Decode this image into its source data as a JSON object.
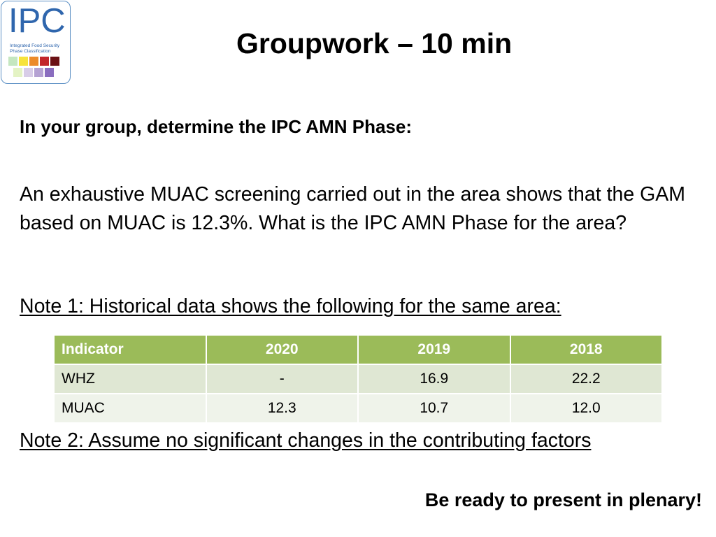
{
  "logo": {
    "wordmark": "IPC",
    "subtitle": "Integrated Food Security\nPhase Classification",
    "swatches_row1": [
      "#c5e7c0",
      "#f7e33b",
      "#ec8b2a",
      "#c2252a",
      "#6b1115"
    ],
    "swatches_row2": [
      "#e4f3c4",
      "#d8cde8",
      "#b5a2d3",
      "#8a6dbf"
    ]
  },
  "title": "Groupwork – 10 min",
  "instruction": "In your group, determine the IPC AMN Phase:",
  "scenario": "An exhaustive MUAC screening carried out in the area shows that the GAM based on MUAC is 12.3%. What is the IPC AMN Phase for the area?",
  "note1": "Note 1: Historical data shows the following for the same area:",
  "table": {
    "headers": [
      "Indicator",
      "2020",
      "2019",
      "2018"
    ],
    "rows": [
      [
        "WHZ",
        "-",
        "16.9",
        "22.2"
      ],
      [
        "MUAC",
        "12.3",
        "10.7",
        "12.0"
      ]
    ]
  },
  "note2": "Note 2: Assume no significant changes in the contributing factors",
  "call_to_action": "Be ready to present in plenary!",
  "colors": {
    "table_header": "#9bbb59",
    "table_row_odd": "#dfe7d3",
    "table_row_even": "#eff3ea",
    "logo_blue": "#2f66ad"
  }
}
